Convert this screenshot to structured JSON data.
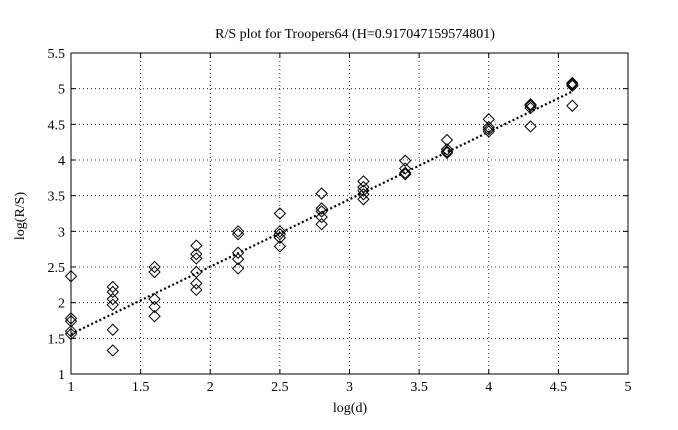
{
  "chart_data": {
    "type": "scatter",
    "title": "R/S plot for Troopers64 (H=0.917047159574801)",
    "xlabel": "log(d)",
    "ylabel": "log(R/S)",
    "xlim": [
      1,
      5
    ],
    "ylim": [
      1,
      5.5
    ],
    "xticks": [
      1,
      1.5,
      2,
      2.5,
      3,
      3.5,
      4,
      4.5,
      5
    ],
    "yticks": [
      1,
      1.5,
      2,
      2.5,
      3,
      3.5,
      4,
      4.5,
      5,
      5.5
    ],
    "xtick_labels": [
      "1",
      "1.5",
      "2",
      "2.5",
      "3",
      "3.5",
      "4",
      "4.5",
      "5"
    ],
    "ytick_labels": [
      "1",
      "1.5",
      "2",
      "2.5",
      "3",
      "3.5",
      "4",
      "4.5",
      "5",
      "5.5"
    ],
    "grid": true,
    "marker": "diamond",
    "series": [
      {
        "points": [
          [
            1.0,
            2.37
          ],
          [
            1.0,
            1.78
          ],
          [
            1.0,
            1.74
          ],
          [
            1.0,
            1.6
          ],
          [
            1.0,
            1.56
          ],
          [
            1.3,
            2.22
          ],
          [
            1.3,
            2.15
          ],
          [
            1.3,
            2.05
          ],
          [
            1.3,
            1.97
          ],
          [
            1.3,
            1.62
          ],
          [
            1.3,
            1.33
          ],
          [
            1.6,
            2.5
          ],
          [
            1.6,
            2.43
          ],
          [
            1.6,
            2.05
          ],
          [
            1.6,
            1.94
          ],
          [
            1.6,
            1.81
          ],
          [
            1.9,
            2.8
          ],
          [
            1.9,
            2.68
          ],
          [
            1.9,
            2.62
          ],
          [
            1.9,
            2.43
          ],
          [
            1.9,
            2.27
          ],
          [
            1.9,
            2.18
          ],
          [
            2.2,
            3.0
          ],
          [
            2.2,
            2.96
          ],
          [
            2.2,
            2.7
          ],
          [
            2.2,
            2.61
          ],
          [
            2.2,
            2.48
          ],
          [
            2.5,
            3.25
          ],
          [
            2.5,
            3.0
          ],
          [
            2.5,
            2.96
          ],
          [
            2.5,
            2.91
          ],
          [
            2.5,
            2.79
          ],
          [
            2.8,
            3.53
          ],
          [
            2.8,
            3.32
          ],
          [
            2.8,
            3.28
          ],
          [
            2.8,
            3.2
          ],
          [
            2.8,
            3.1
          ],
          [
            3.1,
            3.7
          ],
          [
            3.1,
            3.62
          ],
          [
            3.1,
            3.57
          ],
          [
            3.1,
            3.52
          ],
          [
            3.1,
            3.45
          ],
          [
            3.4,
            3.99
          ],
          [
            3.4,
            3.88
          ],
          [
            3.4,
            3.82
          ],
          [
            3.4,
            3.8
          ],
          [
            3.7,
            4.28
          ],
          [
            3.7,
            4.15
          ],
          [
            3.7,
            4.12
          ],
          [
            3.7,
            4.1
          ],
          [
            4.0,
            4.57
          ],
          [
            4.0,
            4.46
          ],
          [
            4.0,
            4.43
          ],
          [
            4.0,
            4.4
          ],
          [
            4.3,
            4.78
          ],
          [
            4.3,
            4.76
          ],
          [
            4.3,
            4.73
          ],
          [
            4.3,
            4.47
          ],
          [
            4.6,
            5.08
          ],
          [
            4.6,
            5.06
          ],
          [
            4.6,
            5.04
          ],
          [
            4.6,
            4.76
          ]
        ]
      }
    ],
    "fit_line": {
      "x": [
        1.0,
        4.6
      ],
      "y": [
        1.56,
        4.96
      ]
    }
  }
}
